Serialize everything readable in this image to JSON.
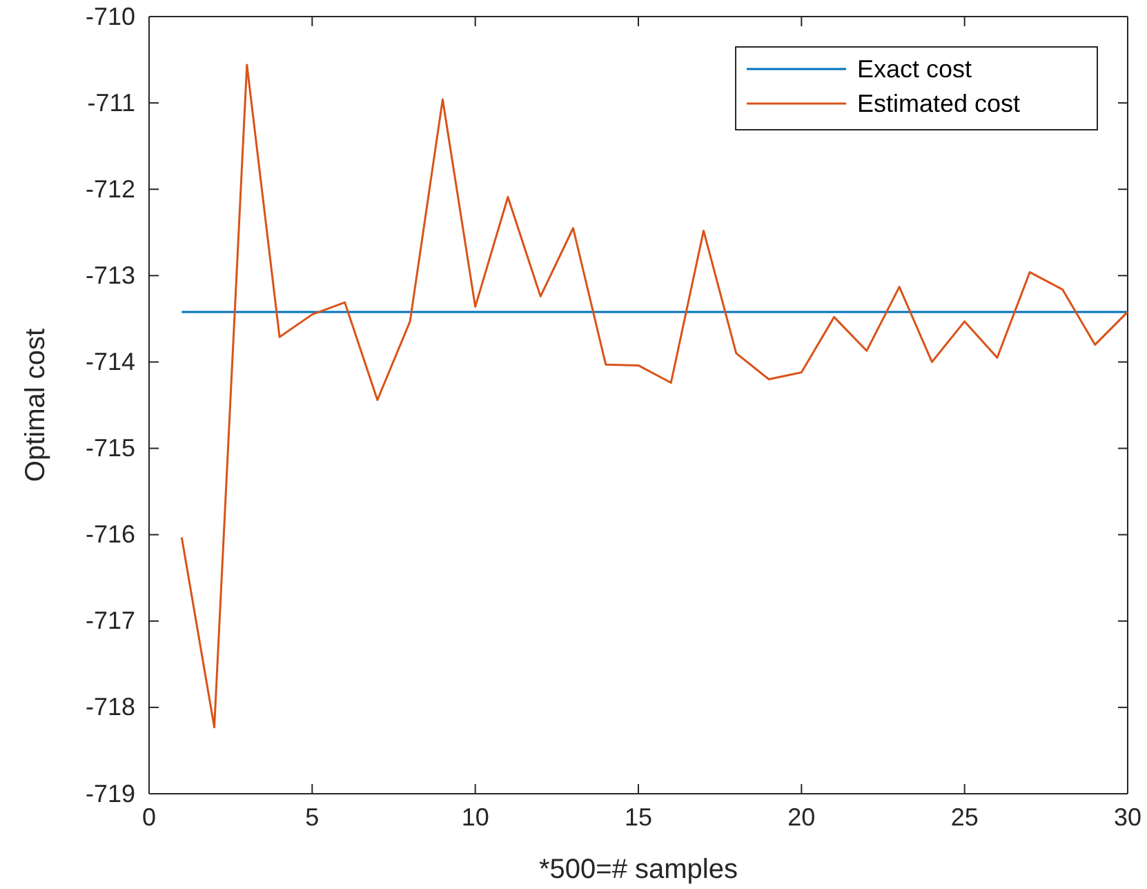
{
  "chart_data": {
    "type": "line",
    "xlabel": "*500=# samples",
    "ylabel": "Optimal cost",
    "xlim": [
      0,
      30
    ],
    "xticks": [
      0,
      5,
      10,
      15,
      20,
      25,
      30
    ],
    "ylim": [
      -719,
      -710
    ],
    "yticks": [
      -719,
      -718,
      -717,
      -716,
      -715,
      -714,
      -713,
      -712,
      -711,
      -710
    ],
    "grid": false,
    "legend": "top right",
    "series": [
      {
        "name": "Exact cost",
        "color": "#0072bd",
        "x": [
          1,
          30
        ],
        "values": [
          -713.42,
          -713.42
        ]
      },
      {
        "name": "Estimated cost",
        "color": "#d95319",
        "x": [
          1,
          2,
          3,
          4,
          5,
          6,
          7,
          8,
          9,
          10,
          11,
          12,
          13,
          14,
          15,
          16,
          17,
          18,
          19,
          20,
          21,
          22,
          23,
          24,
          25,
          26,
          27,
          28,
          29,
          30
        ],
        "values": [
          -716.03,
          -718.23,
          -710.56,
          -713.71,
          -713.45,
          -713.31,
          -714.44,
          -713.53,
          -710.96,
          -713.36,
          -712.09,
          -713.24,
          -712.45,
          -714.03,
          -714.04,
          -714.24,
          -712.48,
          -713.9,
          -714.2,
          -714.12,
          -713.48,
          -713.87,
          -713.13,
          -714.0,
          -713.53,
          -713.95,
          -712.96,
          -713.16,
          -713.8,
          -713.42
        ]
      }
    ]
  }
}
